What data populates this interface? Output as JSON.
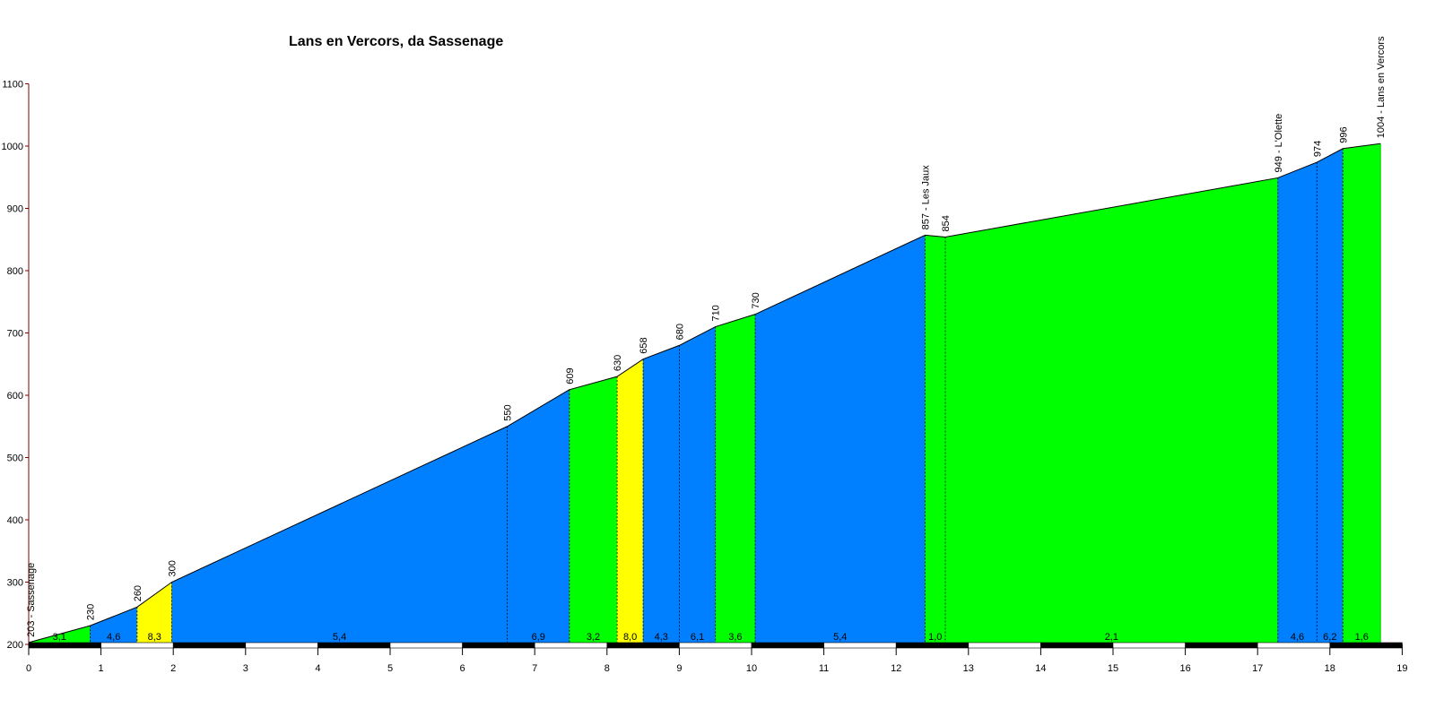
{
  "chart_data": {
    "type": "area",
    "title": "Lans en Vercors, da Sassenage",
    "xlabel": "",
    "ylabel": "",
    "xlim": [
      0,
      19
    ],
    "ylim": [
      200,
      1100
    ],
    "x_ticks": [
      "0",
      "1",
      "2",
      "3",
      "4",
      "5",
      "6",
      "7",
      "8",
      "9",
      "10",
      "11",
      "12",
      "13",
      "14",
      "15",
      "16",
      "17",
      "18",
      "19"
    ],
    "y_ticks": [
      "200",
      "300",
      "400",
      "500",
      "600",
      "700",
      "800",
      "900",
      "1000",
      "1100"
    ],
    "points": [
      {
        "x": 0,
        "y": 203,
        "label": "203 - Sassenage"
      },
      {
        "x": 0.85,
        "y": 230,
        "label": "230"
      },
      {
        "x": 1.5,
        "y": 260,
        "label": "260"
      },
      {
        "x": 1.98,
        "y": 300,
        "label": "300"
      },
      {
        "x": 6.62,
        "y": 550,
        "label": "550"
      },
      {
        "x": 7.48,
        "y": 609,
        "label": "609"
      },
      {
        "x": 8.14,
        "y": 630,
        "label": "630"
      },
      {
        "x": 8.5,
        "y": 658,
        "label": "658"
      },
      {
        "x": 9.0,
        "y": 680,
        "label": "680"
      },
      {
        "x": 9.5,
        "y": 710,
        "label": "710"
      },
      {
        "x": 10.05,
        "y": 730,
        "label": "730"
      },
      {
        "x": 12.4,
        "y": 857,
        "label": "857 - Les Jaux"
      },
      {
        "x": 12.68,
        "y": 854,
        "label": "854"
      },
      {
        "x": 17.28,
        "y": 949,
        "label": "949 - L'Olette"
      },
      {
        "x": 17.82,
        "y": 974,
        "label": "974"
      },
      {
        "x": 18.18,
        "y": 996,
        "label": "996"
      },
      {
        "x": 18.7,
        "y": 1004,
        "label": "1004 - Lans en Vercors"
      }
    ],
    "segments": [
      {
        "gradient": "3,1",
        "color": "#00ff00"
      },
      {
        "gradient": "4,6",
        "color": "#0080ff"
      },
      {
        "gradient": "8,3",
        "color": "#ffff00"
      },
      {
        "gradient": "5,4",
        "color": "#0080ff"
      },
      {
        "gradient": "6,9",
        "color": "#0080ff"
      },
      {
        "gradient": "3,2",
        "color": "#00ff00"
      },
      {
        "gradient": "8,0",
        "color": "#ffff00"
      },
      {
        "gradient": "4,3",
        "color": "#0080ff"
      },
      {
        "gradient": "6,1",
        "color": "#0080ff"
      },
      {
        "gradient": "3,6",
        "color": "#00ff00"
      },
      {
        "gradient": "5,4",
        "color": "#0080ff"
      },
      {
        "gradient": "1,0",
        "color": "#00ff00"
      },
      {
        "gradient": "2,1",
        "color": "#00ff00"
      },
      {
        "gradient": "4,6",
        "color": "#0080ff"
      },
      {
        "gradient": "6,2",
        "color": "#0080ff"
      },
      {
        "gradient": "1,6",
        "color": "#00ff00"
      }
    ]
  }
}
